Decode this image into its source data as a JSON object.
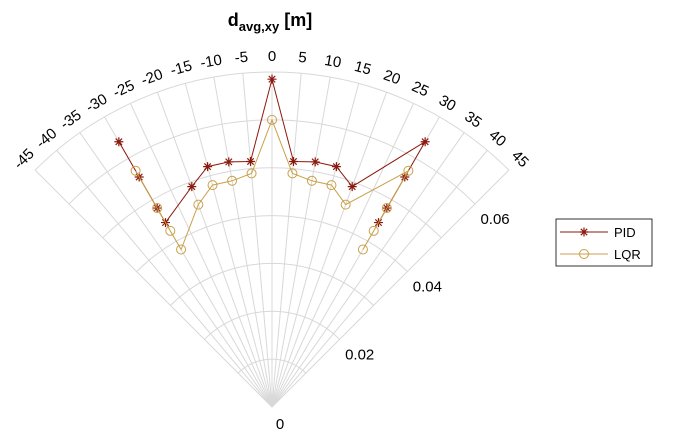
{
  "chart_data": {
    "type": "scatter",
    "coordinate_system": "polar",
    "title": {
      "main": "d",
      "subscript": "avg,xy",
      "suffix": " [m]"
    },
    "theta_unit": "degrees",
    "theta_range": [
      -45,
      45
    ],
    "theta_ticks": [
      "-45",
      "-40",
      "-35",
      "-30",
      "-25",
      "-20",
      "-15",
      "-10",
      "-5",
      "0",
      "5",
      "10",
      "15",
      "20",
      "25",
      "30",
      "35",
      "40",
      "45"
    ],
    "r_range": [
      0,
      0.07
    ],
    "r_ticks": [
      "0",
      "0.02",
      "0.04",
      "0.06"
    ],
    "r_tick_values": [
      0,
      0.02,
      0.04,
      0.06
    ],
    "legend_position": "right",
    "grid": true,
    "series": [
      {
        "name": "PID",
        "color": "#8b1a0e",
        "marker": "asterisk",
        "theta": [
          -30,
          -30,
          -30,
          -30,
          -20,
          -15,
          -10,
          -5,
          0,
          5,
          10,
          15,
          20,
          30,
          30,
          30,
          30
        ],
        "r": [
          0.064,
          0.0555,
          0.048,
          0.0445,
          0.049,
          0.052,
          0.052,
          0.0515,
          0.0685,
          0.0515,
          0.052,
          0.052,
          0.049,
          0.064,
          0.0555,
          0.048,
          0.0445
        ]
      },
      {
        "name": "LQR",
        "color": "#c9a048",
        "marker": "circle",
        "theta": [
          -30,
          -30,
          -30,
          -30,
          -20,
          -15,
          -10,
          -5,
          0,
          5,
          10,
          15,
          20,
          30,
          30,
          30,
          30
        ],
        "r": [
          0.057,
          0.048,
          0.0425,
          0.038,
          0.045,
          0.048,
          0.048,
          0.049,
          0.06,
          0.049,
          0.048,
          0.048,
          0.045,
          0.057,
          0.048,
          0.0425,
          0.038
        ]
      }
    ]
  }
}
